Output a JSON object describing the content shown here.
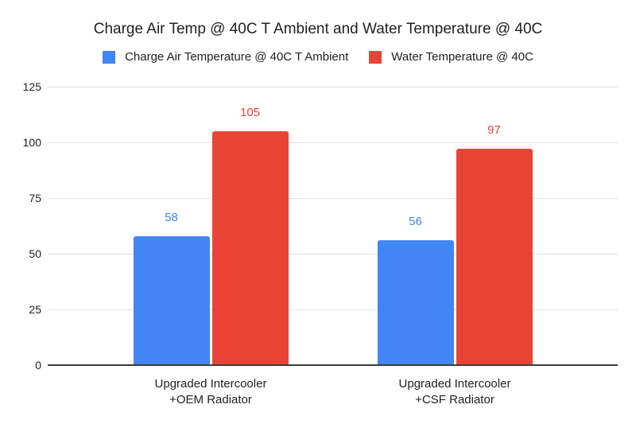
{
  "title": "Charge Air Temp @ 40C T Ambient and Water Temperature @ 40C",
  "colors": {
    "series_blue": "#4285F4",
    "series_red": "#EA4335",
    "gridline": "#e2e2e2",
    "axis_line": "#3c3c3c",
    "text": "#202124"
  },
  "legend": [
    {
      "label": "Charge Air Temperature @ 40C T Ambient",
      "color": "#4285F4"
    },
    {
      "label": "Water Temperature @ 40C",
      "color": "#EA4335"
    }
  ],
  "chart_data": {
    "type": "bar",
    "title": "Charge Air Temp @ 40C T Ambient and Water Temperature @ 40C",
    "categories": [
      {
        "lines": [
          "Upgraded Intercooler",
          "+OEM Radiator"
        ]
      },
      {
        "lines": [
          "Upgraded Intercooler",
          "+CSF Radiator"
        ]
      }
    ],
    "series": [
      {
        "name": "Charge Air Temperature @ 40C T Ambient",
        "color": "#4285F4",
        "values": [
          58,
          56
        ]
      },
      {
        "name": "Water Temperature @ 40C",
        "color": "#EA4335",
        "values": [
          105,
          97
        ]
      }
    ],
    "yticks": [
      0,
      25,
      50,
      75,
      100,
      125
    ],
    "ylim": [
      0,
      125
    ],
    "xlabel": "",
    "ylabel": "",
    "grid": true,
    "legend_position": "top",
    "data_labels": true
  }
}
